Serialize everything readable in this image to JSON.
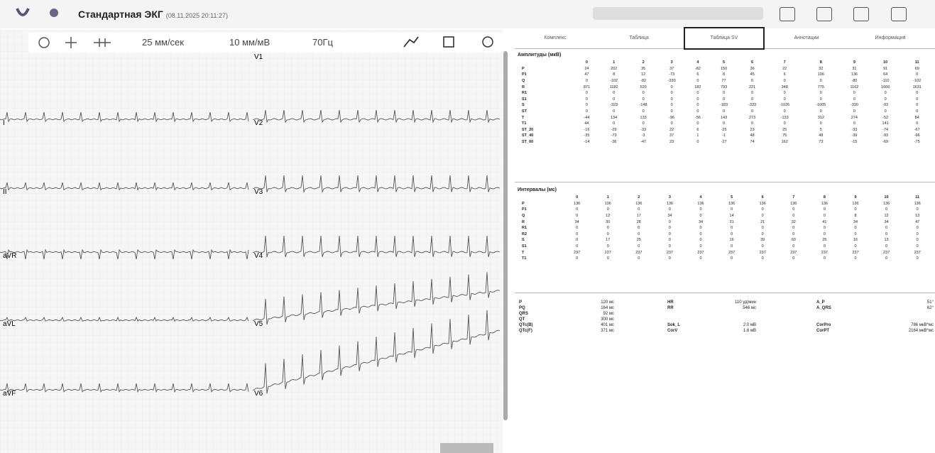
{
  "header": {
    "title": "Стандартная ЭКГ",
    "timestamp": "(08.11.2025 20:11:27)"
  },
  "toolbar": {
    "speed": "25 мм/сек",
    "gain": "10 мм/мВ",
    "filter": "70Гц"
  },
  "leads": {
    "left": [
      "I",
      "II",
      "aVR",
      "aVL",
      "aVF"
    ],
    "right": [
      "V1",
      "V2",
      "V3",
      "V4",
      "V5",
      "V6"
    ]
  },
  "tabs": {
    "items": [
      "Комплекс",
      "Таблица",
      "Таблица SV",
      "Аннотации",
      "Информация"
    ],
    "selected": 2
  },
  "amplitudes": {
    "title": "Амплитуды (мкВ)",
    "columns": [
      "0",
      "1",
      "2",
      "3",
      "4",
      "5",
      "6",
      "7",
      "8",
      "9",
      "10",
      "11"
    ],
    "rows": [
      {
        "label": "P",
        "values": [
          24,
          202,
          35,
          37,
          -82,
          150,
          36,
          22,
          32,
          31,
          91,
          69
        ]
      },
      {
        "label": "P1",
        "values": [
          47,
          8,
          12,
          -73,
          6,
          8,
          45,
          6,
          106,
          136,
          64,
          0
        ]
      },
      {
        "label": "Q",
        "values": [
          0,
          -102,
          -82,
          -330,
          0,
          77,
          0,
          0,
          0,
          -80,
          -110,
          -102
        ]
      },
      {
        "label": "R",
        "values": [
          871,
          1182,
          520,
          0,
          182,
          793,
          221,
          348,
          775,
          1162,
          1666,
          1631
        ]
      },
      {
        "label": "R1",
        "values": [
          0,
          0,
          0,
          0,
          0,
          0,
          0,
          0,
          0,
          0,
          0,
          0
        ]
      },
      {
        "label": "S1",
        "values": [
          0,
          0,
          0,
          0,
          0,
          0,
          0,
          0,
          0,
          0,
          0,
          0
        ]
      },
      {
        "label": "S",
        "values": [
          0,
          -323,
          -148,
          0,
          0,
          -183,
          -333,
          -1026,
          -1005,
          -330,
          -93,
          0
        ]
      },
      {
        "label": "ST",
        "values": [
          0,
          0,
          0,
          0,
          0,
          0,
          0,
          0,
          0,
          0,
          0,
          0
        ]
      },
      {
        "label": "T",
        "values": [
          -44,
          134,
          133,
          -96,
          -56,
          143,
          273,
          -133,
          312,
          274,
          -52,
          84
        ]
      },
      {
        "label": "T1",
        "values": [
          44,
          0,
          0,
          0,
          0,
          0,
          0,
          0,
          0,
          0,
          141,
          0
        ]
      },
      {
        "label": "ST_20",
        "values": [
          -16,
          -29,
          -33,
          22,
          6,
          -25,
          23,
          25,
          5,
          -33,
          -74,
          -67
        ]
      },
      {
        "label": "ST_40",
        "values": [
          -35,
          -73,
          -3,
          37,
          1,
          -1,
          48,
          75,
          48,
          -39,
          -93,
          -96
        ]
      },
      {
        "label": "ST_60",
        "values": [
          -14,
          -36,
          -47,
          23,
          0,
          -27,
          74,
          162,
          73,
          -15,
          -69,
          -75
        ]
      }
    ]
  },
  "intervals": {
    "title": "Интервалы (мс)",
    "columns": [
      "0",
      "1",
      "2",
      "3",
      "4",
      "5",
      "6",
      "7",
      "8",
      "9",
      "10",
      "11"
    ],
    "rows": [
      {
        "label": "P",
        "values": [
          136,
          136,
          136,
          136,
          136,
          136,
          136,
          136,
          136,
          136,
          136,
          136
        ]
      },
      {
        "label": "P1",
        "values": [
          0,
          0,
          0,
          0,
          0,
          0,
          0,
          0,
          0,
          0,
          0,
          0
        ]
      },
      {
        "label": "Q",
        "values": [
          0,
          12,
          17,
          34,
          0,
          14,
          0,
          0,
          0,
          8,
          12,
          13
        ]
      },
      {
        "label": "R",
        "values": [
          34,
          30,
          28,
          0,
          34,
          31,
          21,
          32,
          41,
          34,
          34,
          47
        ]
      },
      {
        "label": "R1",
        "values": [
          0,
          0,
          0,
          0,
          0,
          0,
          0,
          0,
          0,
          0,
          0,
          0
        ]
      },
      {
        "label": "R2",
        "values": [
          0,
          0,
          0,
          0,
          0,
          0,
          0,
          0,
          0,
          0,
          0,
          0
        ]
      },
      {
        "label": "S",
        "values": [
          0,
          17,
          25,
          0,
          0,
          16,
          39,
          60,
          25,
          16,
          13,
          0
        ]
      },
      {
        "label": "S1",
        "values": [
          0,
          0,
          0,
          0,
          0,
          0,
          0,
          0,
          0,
          0,
          0,
          0
        ]
      },
      {
        "label": "T",
        "values": [
          237,
          237,
          237,
          237,
          237,
          237,
          237,
          237,
          237,
          237,
          237,
          237
        ]
      },
      {
        "label": "T1",
        "values": [
          0,
          0,
          0,
          0,
          0,
          0,
          0,
          0,
          0,
          0,
          0,
          0
        ]
      }
    ]
  },
  "summary": [
    [
      {
        "label": "P",
        "value": "120 мс"
      },
      {
        "label": "HR",
        "value": "110 уд/мин"
      },
      {
        "label": "A_P",
        "value": "51°"
      }
    ],
    [
      {
        "label": "PQ",
        "value": "164 мс"
      },
      {
        "label": "RR",
        "value": "546 мс"
      },
      {
        "label": "A_QRS",
        "value": "62°"
      }
    ],
    [
      {
        "label": "QRS",
        "value": "92 мс"
      }
    ],
    [
      {
        "label": "QT",
        "value": "300 мс"
      }
    ],
    [
      {
        "label": "QTc(B)",
        "value": "401 мс"
      },
      {
        "label": "Sok_L",
        "value": "2.0 мВ"
      },
      {
        "label": "CorPro",
        "value": "786 мкВ*мс"
      }
    ],
    [
      {
        "label": "QTc(F)",
        "value": "371 мс"
      },
      {
        "label": "CorV",
        "value": "1.6 мВ"
      },
      {
        "label": "CorPT",
        "value": "2164 мкВ*мс"
      }
    ]
  ]
}
